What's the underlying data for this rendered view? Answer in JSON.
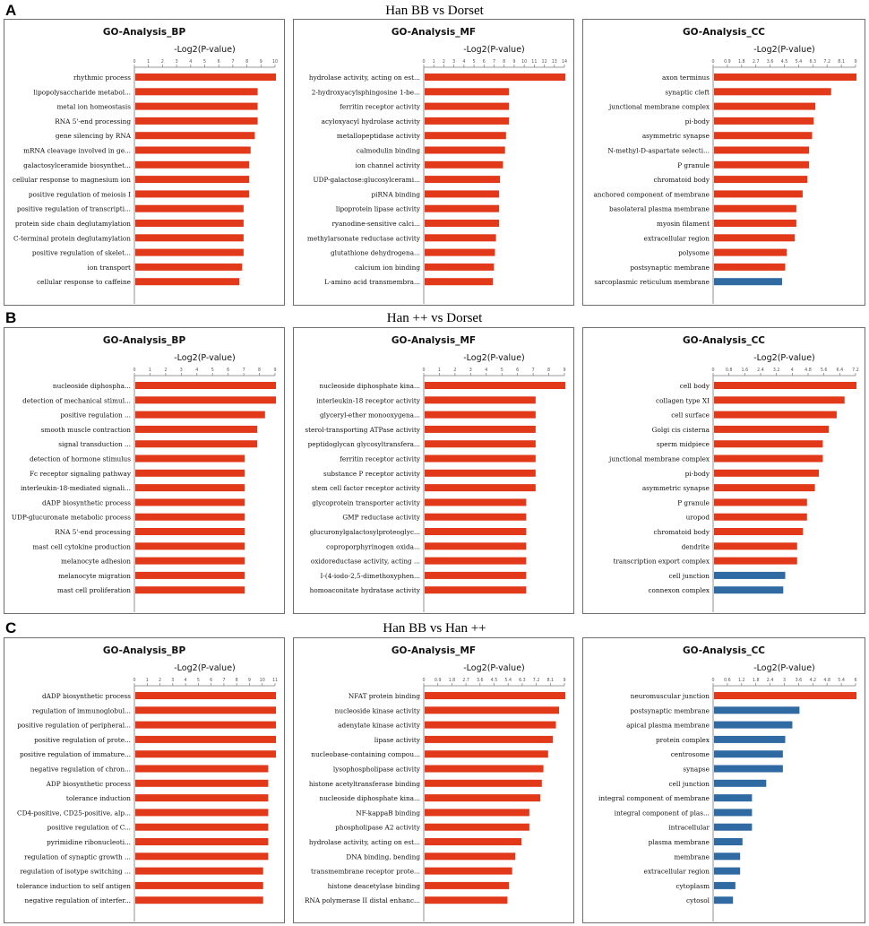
{
  "colors": {
    "red": "#e2391a",
    "blue": "#2f6aa3",
    "axis": "#777777",
    "text": "#111111",
    "tick": "#555555"
  },
  "sections": [
    {
      "letter": "A",
      "title": "Han BB vs Dorset",
      "charts": [
        {
          "type": "bar",
          "title": "GO-Analysis_BP",
          "xlabel": "-Log2(P-value)",
          "xlim": [
            0,
            10
          ],
          "ticks": [
            0,
            1,
            2,
            3,
            4,
            5,
            6,
            7,
            8,
            9,
            10
          ],
          "categories": [
            "rhythmic process",
            "lipopolysaccharide metabol...",
            "metal ion homeostasis",
            "RNA 5'-end processing",
            "gene silencing by RNA",
            "mRNA cleavage involved in ge...",
            "galactosylceramide biosynthet...",
            "cellular response to magnesium ion",
            "positive regulation of meiosis I",
            "positive regulation of transcripti...",
            "protein side chain deglutamylation",
            "C-terminal protein deglutamylation",
            "positive regulation of skelet...",
            "ion transport",
            "cellular response to caffeine"
          ],
          "values": [
            10.0,
            8.7,
            8.7,
            8.7,
            8.5,
            8.2,
            8.1,
            8.1,
            8.1,
            7.7,
            7.7,
            7.7,
            7.7,
            7.6,
            7.4
          ],
          "colors": [
            "red",
            "red",
            "red",
            "red",
            "red",
            "red",
            "red",
            "red",
            "red",
            "red",
            "red",
            "red",
            "red",
            "red",
            "red"
          ]
        },
        {
          "type": "bar",
          "title": "GO-Analysis_MF",
          "xlabel": "-Log2(P-value)",
          "xlim": [
            0,
            14
          ],
          "ticks": [
            0,
            1,
            2,
            3,
            4,
            5,
            6,
            7,
            8,
            9,
            10,
            11,
            12,
            13,
            14
          ],
          "categories": [
            "hydrolase activity, acting on est...",
            "2-hydroxyacylsphingosine 1-be...",
            "ferritin receptor activity",
            "acyloxyacyl hydrolase activity",
            "metallopeptidase activity",
            "calmodulin binding",
            "ion channel activity",
            "UDP-galactose:glucosylcerami...",
            "piRNA binding",
            "lipoprotein lipase activity",
            "ryanodine-sensitive calci...",
            "methylarsonate reductase activity",
            "glutathione dehydrogena...",
            "calcium ion binding",
            "L-amino acid transmembra..."
          ],
          "values": [
            14.0,
            8.4,
            8.4,
            8.4,
            8.1,
            8.0,
            7.8,
            7.5,
            7.4,
            7.4,
            7.4,
            7.1,
            7.0,
            6.9,
            6.8
          ],
          "colors": [
            "red",
            "red",
            "red",
            "red",
            "red",
            "red",
            "red",
            "red",
            "red",
            "red",
            "red",
            "red",
            "red",
            "red",
            "red"
          ]
        },
        {
          "type": "bar",
          "title": "GO-Analysis_CC",
          "xlabel": "-Log2(P-value)",
          "xlim": [
            0,
            9
          ],
          "ticks": [
            0,
            0.9,
            1.8,
            2.7,
            3.6,
            4.5,
            5.4,
            6.3,
            7.2,
            8.1,
            9
          ],
          "categories": [
            "axon terminus",
            "synaptic cleft",
            "junctional membrane complex",
            "pi-body",
            "asymmetric synapse",
            "N-methyl-D-aspartate selecti...",
            "P granule",
            "chromatoid body",
            "anchored component of membrane",
            "basolateral plasma membrane",
            "myosin filament",
            "extracellular region",
            "polysome",
            "postsynaptic membrane",
            "sarcoplasmic reticulum membrane"
          ],
          "values": [
            9.0,
            7.4,
            6.4,
            6.3,
            6.2,
            6.0,
            6.0,
            5.9,
            5.6,
            5.2,
            5.2,
            5.1,
            4.6,
            4.5,
            4.3
          ],
          "colors": [
            "red",
            "red",
            "red",
            "red",
            "red",
            "red",
            "red",
            "red",
            "red",
            "red",
            "red",
            "red",
            "red",
            "red",
            "blue"
          ]
        }
      ]
    },
    {
      "letter": "B",
      "title": "Han ++ vs Dorset",
      "charts": [
        {
          "type": "bar",
          "title": "GO-Analysis_BP",
          "xlabel": "-Log2(P-value)",
          "xlim": [
            0,
            9
          ],
          "ticks": [
            0,
            1,
            2,
            3,
            4,
            5,
            6,
            7,
            8,
            9
          ],
          "categories": [
            "nucleoside diphospha...",
            "detection of mechanical stimul...",
            "positive regulation ...",
            "smooth muscle contraction",
            "signal transduction ...",
            "detection of hormone stimulus",
            "Fc receptor signaling pathway",
            "interleukin-18-mediated signali...",
            "dADP biosynthetic process",
            "UDP-glucuronate metabolic process",
            "RNA 5'-end processing",
            "mast cell cytokine production",
            "melanocyte adhesion",
            "melanocyte migration",
            "mast cell proliferation"
          ],
          "values": [
            9.0,
            9.0,
            8.3,
            7.8,
            7.8,
            7.0,
            7.0,
            7.0,
            7.0,
            7.0,
            7.0,
            7.0,
            7.0,
            7.0,
            7.0
          ],
          "colors": [
            "red",
            "red",
            "red",
            "red",
            "red",
            "red",
            "red",
            "red",
            "red",
            "red",
            "red",
            "red",
            "red",
            "red",
            "red"
          ]
        },
        {
          "type": "bar",
          "title": "GO-Analysis_MF",
          "xlabel": "-Log2(P-value)",
          "xlim": [
            0,
            9
          ],
          "ticks": [
            0,
            1,
            2,
            3,
            4,
            5,
            6,
            7,
            8,
            9
          ],
          "categories": [
            "nucleoside diphosphate kina...",
            "interleukin-18 receptor activity",
            "glyceryl-ether monooxygena...",
            "sterol-transporting ATPase activity",
            "peptidoglycan glycosyltransfera...",
            "ferritin receptor activity",
            "substance P receptor activity",
            "stem cell factor receptor activity",
            "glycoprotein transporter activity",
            "GMP reductase activity",
            "glucuronylgalactosylproteoglyc...",
            "coproporphyrinogen oxida...",
            "oxidoreductase activity, acting ...",
            "I-(4-iodo-2,5-dimethoxyphen...",
            "homoaconitate hydratase activity"
          ],
          "values": [
            9.0,
            7.1,
            7.1,
            7.1,
            7.1,
            7.1,
            7.1,
            7.1,
            6.5,
            6.5,
            6.5,
            6.5,
            6.5,
            6.5,
            6.5
          ],
          "colors": [
            "red",
            "red",
            "red",
            "red",
            "red",
            "red",
            "red",
            "red",
            "red",
            "red",
            "red",
            "red",
            "red",
            "red",
            "red"
          ]
        },
        {
          "type": "bar",
          "title": "GO-Analysis_CC",
          "xlabel": "-Log2(P-value)",
          "xlim": [
            0,
            7.2
          ],
          "ticks": [
            0,
            0.8,
            1.6,
            2.4,
            3.2,
            4,
            4.8,
            5.6,
            6.4,
            7.2
          ],
          "categories": [
            "cell body",
            "collagen type XI",
            "cell surface",
            "Golgi cis cisterna",
            "sperm midpiece",
            "junctional membrane complex",
            "pi-body",
            "asymmetric synapse",
            "P granule",
            "uropod",
            "chromatoid body",
            "dendrite",
            "transcription export complex",
            "cell junction",
            "connexon complex"
          ],
          "values": [
            7.2,
            6.6,
            6.2,
            5.8,
            5.5,
            5.5,
            5.3,
            5.1,
            4.7,
            4.7,
            4.5,
            4.2,
            4.2,
            3.6,
            3.5
          ],
          "colors": [
            "red",
            "red",
            "red",
            "red",
            "red",
            "red",
            "red",
            "red",
            "red",
            "red",
            "red",
            "red",
            "red",
            "blue",
            "blue"
          ]
        }
      ]
    },
    {
      "letter": "C",
      "title": "Han BB vs Han ++",
      "charts": [
        {
          "type": "bar",
          "title": "GO-Analysis_BP",
          "xlabel": "-Log2(P-value)",
          "xlim": [
            0,
            11
          ],
          "ticks": [
            0,
            1,
            2,
            3,
            4,
            5,
            6,
            7,
            8,
            9,
            10,
            11
          ],
          "categories": [
            "dADP biosynthetic process",
            "regulation of immunoglobul...",
            "positive regulation of peripheral...",
            "positive regulation of prote...",
            "positive regulation of immature...",
            "negative regulation of chron...",
            "ADP biosynthetic process",
            "tolerance induction",
            "CD4-positive, CD25-positive, alp...",
            "positive regulation of C...",
            "pyrimidine ribonucleoti...",
            "regulation of synaptic growth ...",
            "regulation of isotype switching ...",
            "tolerance induction to self antigen",
            "negative regulation of interfer..."
          ],
          "values": [
            11.0,
            11.0,
            11.0,
            11.0,
            11.0,
            10.4,
            10.4,
            10.4,
            10.4,
            10.4,
            10.4,
            10.4,
            10.0,
            10.0,
            10.0
          ],
          "colors": [
            "red",
            "red",
            "red",
            "red",
            "red",
            "red",
            "red",
            "red",
            "red",
            "red",
            "red",
            "red",
            "red",
            "red",
            "red"
          ]
        },
        {
          "type": "bar",
          "title": "GO-Analysis_MF",
          "xlabel": "-Log2(P-value)",
          "xlim": [
            0,
            9
          ],
          "ticks": [
            0,
            0.9,
            1.8,
            2.7,
            3.6,
            4.5,
            5.4,
            6.3,
            7.2,
            8.1,
            9
          ],
          "categories": [
            "NFAT protein binding",
            "nucleoside kinase activity",
            "adenylate kinase activity",
            "lipase activity",
            "nucleobase-containing compou...",
            "lysophospholipase activity",
            "histone acetyltransferase binding",
            "nucleoside diphosphate kina...",
            "NF-kappaB binding",
            "phospholipase A2 activity",
            "hydrolase activity, acting on est...",
            "DNA binding, bending",
            "transmembrane receptor prote...",
            "histone deacetylase binding",
            "RNA polymerase II distal enhanc..."
          ],
          "values": [
            9.0,
            8.6,
            8.4,
            8.2,
            7.9,
            7.6,
            7.5,
            7.4,
            6.7,
            6.7,
            6.2,
            5.8,
            5.6,
            5.4,
            5.3
          ],
          "colors": [
            "red",
            "red",
            "red",
            "red",
            "red",
            "red",
            "red",
            "red",
            "red",
            "red",
            "red",
            "red",
            "red",
            "red",
            "red"
          ]
        },
        {
          "type": "bar",
          "title": "GO-Analysis_CC",
          "xlabel": "-Log2(P-value)",
          "xlim": [
            0,
            6
          ],
          "ticks": [
            0,
            0.6,
            1.2,
            1.8,
            2.4,
            3,
            3.6,
            4.2,
            4.8,
            5.4,
            6
          ],
          "categories": [
            "neuromuscular junction",
            "postsynaptic membrane",
            "apical plasma membrane",
            "protein complex",
            "centrosome",
            "synapse",
            "cell junction",
            "integral component of membrane",
            "integral component of plas...",
            "intracellular",
            "plasma membrane",
            "membrane",
            "extracellular region",
            "cytoplasm",
            "cytosol"
          ],
          "values": [
            6.0,
            3.6,
            3.3,
            3.0,
            2.9,
            2.9,
            2.2,
            1.6,
            1.6,
            1.6,
            1.2,
            1.1,
            1.1,
            0.9,
            0.8
          ],
          "colors": [
            "red",
            "blue",
            "blue",
            "blue",
            "blue",
            "blue",
            "blue",
            "blue",
            "blue",
            "blue",
            "blue",
            "blue",
            "blue",
            "blue",
            "blue"
          ]
        }
      ]
    }
  ]
}
